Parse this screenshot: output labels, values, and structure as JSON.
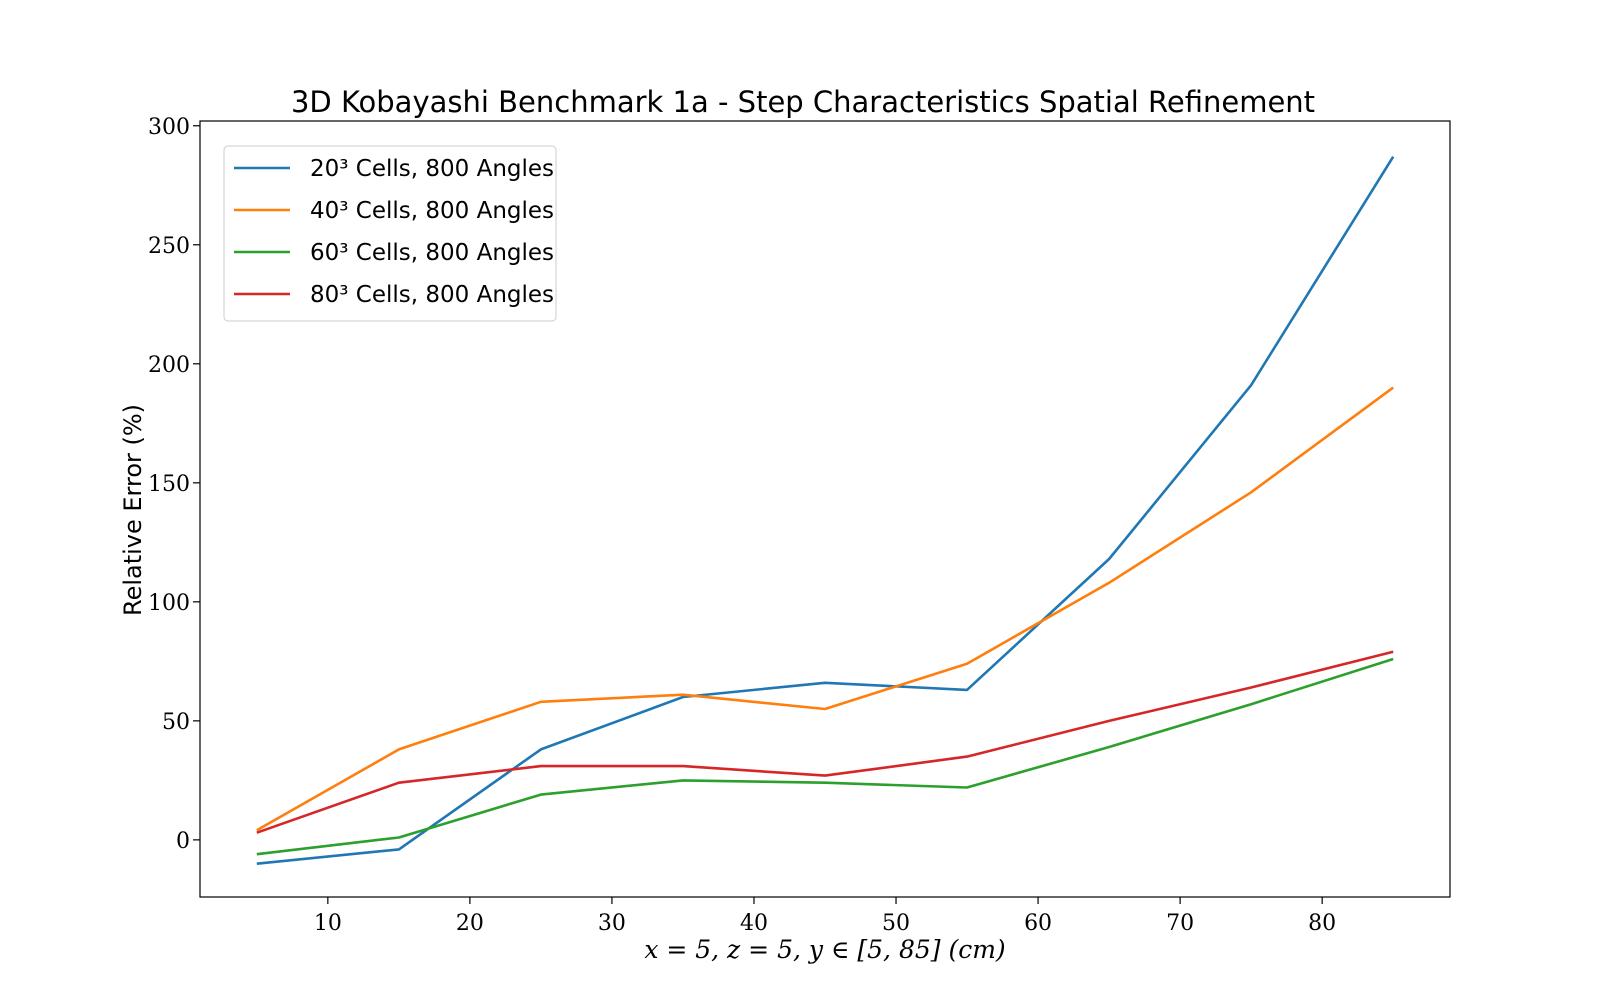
{
  "chart_data": {
    "type": "line",
    "title": "3D Kobayashi Benchmark 1a - Step Characteristics Spatial Refinement",
    "xlabel": "x = 5, z = 5, y ∈ [5, 85] (cm)",
    "ylabel": "Relative Error (%)",
    "xlim": [
      1,
      89
    ],
    "ylim": [
      -24,
      302
    ],
    "xticks": [
      10,
      20,
      30,
      40,
      50,
      60,
      70,
      80
    ],
    "yticks": [
      0,
      50,
      100,
      150,
      200,
      250,
      300
    ],
    "grid": false,
    "legend_position": "top-left",
    "x": [
      5,
      15,
      25,
      35,
      45,
      55,
      65,
      75,
      85
    ],
    "series": [
      {
        "name": "20³ Cells, 800 Angles",
        "color": "#1f77b4",
        "values": [
          -10,
          -4,
          38,
          60,
          66,
          63,
          118,
          191,
          287
        ]
      },
      {
        "name": "40³ Cells, 800 Angles",
        "color": "#ff7f0e",
        "values": [
          4,
          38,
          58,
          61,
          55,
          74,
          108,
          146,
          190
        ]
      },
      {
        "name": "60³ Cells, 800 Angles",
        "color": "#2ca02c",
        "values": [
          -6,
          1,
          19,
          25,
          24,
          22,
          39,
          57,
          76
        ]
      },
      {
        "name": "80³ Cells, 800 Angles",
        "color": "#d62728",
        "values": [
          3,
          24,
          31,
          31,
          27,
          35,
          50,
          64,
          79
        ]
      }
    ]
  }
}
